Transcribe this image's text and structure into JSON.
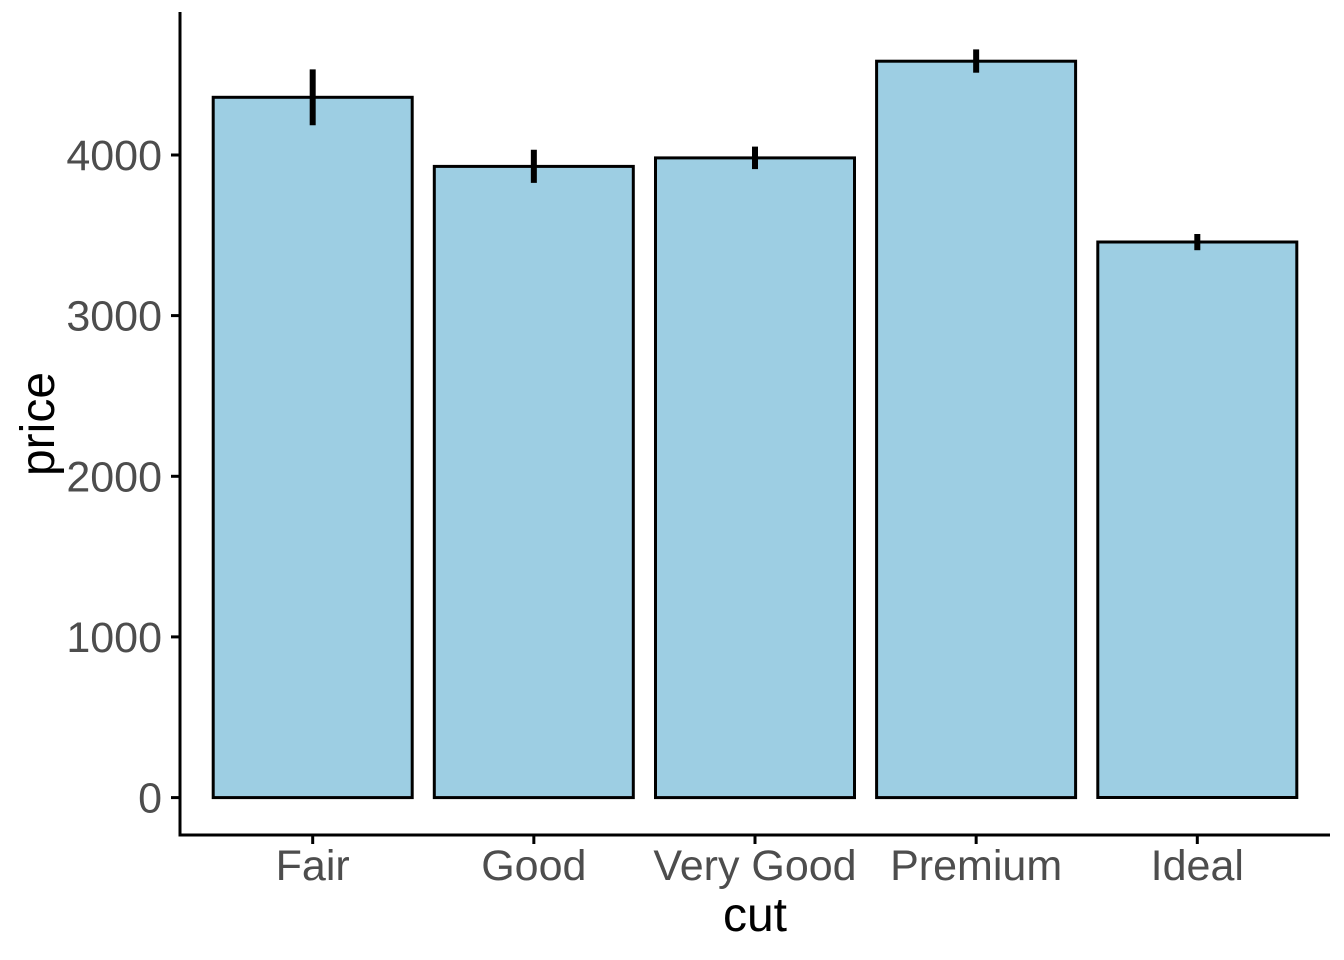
{
  "figure": {
    "background": "#FFFFFF"
  },
  "chart_data": {
    "type": "bar",
    "title": "",
    "xlabel": "cut",
    "ylabel": "price",
    "categories": [
      "Fair",
      "Good",
      "Very Good",
      "Premium",
      "Ideal"
    ],
    "values": [
      4359,
      3929,
      3982,
      4584,
      3458
    ],
    "error_low": [
      4185,
      3826,
      3912,
      4512,
      3407
    ],
    "error_high": [
      4533,
      4032,
      4052,
      4657,
      3508
    ],
    "y_ticks": [
      0,
      1000,
      2000,
      3000,
      4000
    ],
    "y_tick_labels": [
      "0",
      "1000",
      "2000",
      "3000",
      "4000"
    ],
    "ylim": [
      -233,
      4890
    ],
    "xlim_units": [
      0.4,
      5.6
    ],
    "bar_width_fraction": 0.9,
    "grid": "off",
    "legend": "none",
    "style": {
      "bar_fill": "#9DCEE3",
      "bar_stroke": "#000000",
      "errorbar_color": "#000000",
      "axis_line_color": "#000000",
      "tick_color": "#000000",
      "tick_label_color": "#4D4D4D",
      "axis_title_color": "#000000"
    }
  }
}
